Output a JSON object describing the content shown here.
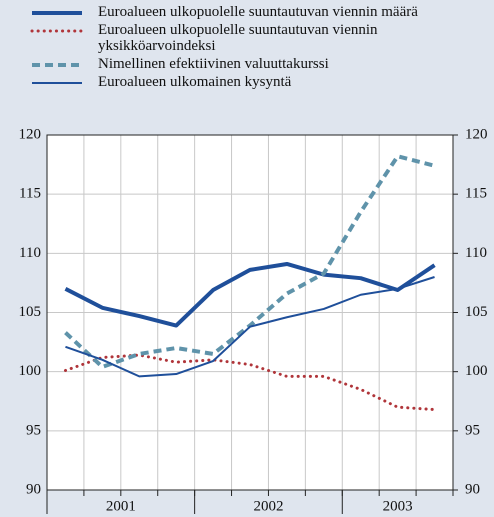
{
  "chart_data": {
    "type": "line",
    "categories": [
      null,
      null,
      null,
      null,
      null,
      null,
      null,
      null,
      null,
      null,
      null
    ],
    "x_groups": [
      {
        "label": "2001",
        "count": 4
      },
      {
        "label": "2002",
        "count": 4
      },
      {
        "label": "2003",
        "count": 3
      }
    ],
    "series": [
      {
        "name": "Euroalueen ulkopuolelle suuntautuvan viennin määrä",
        "color": "#1f4f9a",
        "style": "thick",
        "values": [
          107.0,
          105.4,
          104.7,
          103.9,
          106.9,
          108.6,
          109.1,
          108.2,
          107.9,
          106.9,
          109.0
        ]
      },
      {
        "name": "Euroalueen ulkopuolelle suuntautuvan viennin yksikköarvoindeksi",
        "color": "#b0353a",
        "style": "dotted",
        "values": [
          100.1,
          101.2,
          101.4,
          100.8,
          101.0,
          100.6,
          99.6,
          99.6,
          98.5,
          97.0,
          96.8
        ]
      },
      {
        "name": "Nimellinen efektiivinen valuuttakurssi",
        "color": "#5f93aa",
        "style": "dashed",
        "values": [
          103.3,
          100.4,
          101.5,
          102.0,
          101.5,
          103.9,
          106.6,
          108.3,
          113.5,
          118.2,
          117.4
        ]
      },
      {
        "name": "Euroalueen ulkomainen kysyntä",
        "color": "#1f4f9a",
        "style": "thin",
        "values": [
          102.1,
          101.0,
          99.6,
          99.8,
          100.9,
          103.8,
          104.6,
          105.3,
          106.5,
          107.0,
          108.0
        ]
      }
    ],
    "ylim": [
      90,
      120
    ],
    "yticks": [
      90,
      95,
      100,
      105,
      110,
      115,
      120
    ],
    "y2ticks": [
      90,
      95,
      100,
      105,
      110,
      115,
      120
    ],
    "grid": true
  }
}
